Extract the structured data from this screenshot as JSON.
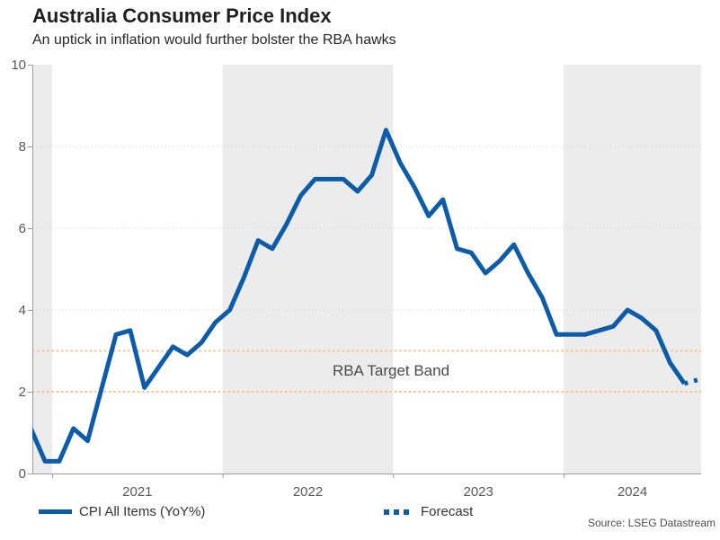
{
  "header": {
    "title": "Australia Consumer Price Index",
    "subtitle": "An uptick in inflation would further bolster the RBA hawks"
  },
  "source": {
    "text": "Source: LSEG Datastream"
  },
  "legend": {
    "items": [
      {
        "label": "CPI All Items (YoY%)",
        "swatch": "solid-line"
      },
      {
        "label": "Forecast",
        "swatch": "dotted-line"
      }
    ]
  },
  "colors": {
    "line_blue": "#0d5ca9",
    "band_fill": "#ececec",
    "gridline": "#d8d8d8",
    "axis": "#9b9b9b",
    "target_orange": "#f8c48f"
  },
  "chart_data": {
    "type": "line",
    "title": "Australia Consumer Price Index",
    "subtitle": "An uptick in inflation would further bolster the RBA hawks",
    "xlabel": "",
    "ylabel": "CPI All Items (YoY%)",
    "ylim": [
      0,
      10
    ],
    "yticks": [
      0,
      2,
      4,
      6,
      8,
      10
    ],
    "gridlines_at": [
      4,
      6,
      8
    ],
    "grid": "dotted horizontal",
    "legend_position": "bottom",
    "year_labels": [
      2021,
      2022,
      2023,
      2024
    ],
    "shaded_bands": [
      [
        "start",
        2021
      ],
      [
        2022,
        2023
      ],
      [
        2024,
        "end"
      ]
    ],
    "target_band": {
      "from": 2,
      "to": 3,
      "label": "RBA Target Band",
      "line_color": "#f8c48f",
      "line_style": "dashed"
    },
    "x": [
      "2020-11",
      "2020-12",
      "2021-01",
      "2021-02",
      "2021-03",
      "2021-04",
      "2021-05",
      "2021-06",
      "2021-07",
      "2021-08",
      "2021-09",
      "2021-10",
      "2021-11",
      "2021-12",
      "2022-01",
      "2022-02",
      "2022-03",
      "2022-04",
      "2022-05",
      "2022-06",
      "2022-07",
      "2022-08",
      "2022-09",
      "2022-10",
      "2022-11",
      "2022-12",
      "2023-01",
      "2023-02",
      "2023-03",
      "2023-04",
      "2023-05",
      "2023-06",
      "2023-07",
      "2023-08",
      "2023-09",
      "2023-10",
      "2023-11",
      "2023-12",
      "2024-01",
      "2024-02",
      "2024-03",
      "2024-04",
      "2024-05",
      "2024-06",
      "2024-07",
      "2024-08",
      "2024-09",
      "2024-10"
    ],
    "series": [
      {
        "name": "CPI All Items (YoY%)",
        "style": "solid",
        "color": "#0d5ca9",
        "values": [
          1.1,
          0.3,
          0.3,
          1.1,
          0.8,
          2.1,
          3.4,
          3.5,
          2.1,
          2.6,
          3.1,
          2.9,
          3.2,
          3.7,
          4.0,
          4.8,
          5.7,
          5.5,
          6.1,
          6.8,
          7.2,
          7.2,
          7.2,
          6.9,
          7.3,
          8.4,
          7.6,
          7.0,
          6.3,
          6.7,
          5.5,
          5.4,
          4.9,
          5.2,
          5.6,
          4.9,
          4.3,
          3.4,
          3.4,
          3.4,
          3.5,
          3.6,
          4.0,
          3.8,
          3.5,
          2.7,
          2.2,
          null
        ]
      },
      {
        "name": "Forecast",
        "style": "dotted",
        "color": "#0d5ca9",
        "values": [
          null,
          null,
          null,
          null,
          null,
          null,
          null,
          null,
          null,
          null,
          null,
          null,
          null,
          null,
          null,
          null,
          null,
          null,
          null,
          null,
          null,
          null,
          null,
          null,
          null,
          null,
          null,
          null,
          null,
          null,
          null,
          null,
          null,
          null,
          null,
          null,
          null,
          null,
          null,
          null,
          null,
          null,
          null,
          null,
          null,
          null,
          2.2,
          2.3
        ]
      }
    ]
  }
}
